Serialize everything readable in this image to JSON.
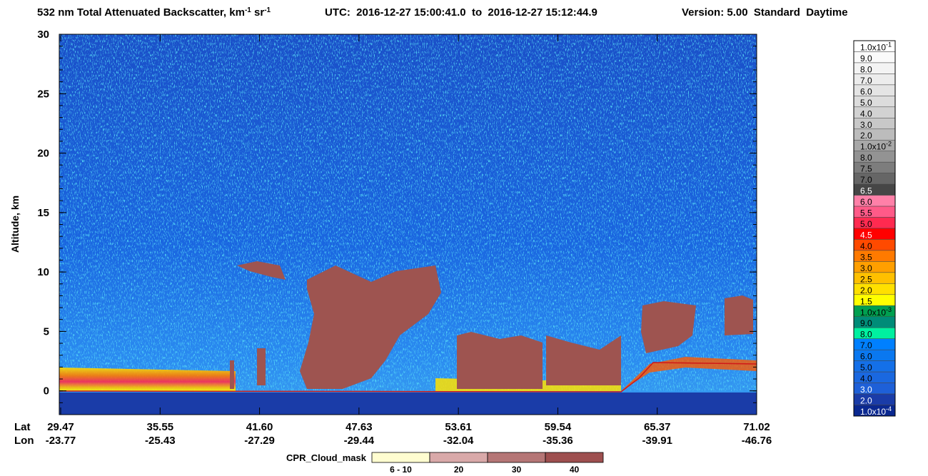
{
  "chart_data": {
    "type": "heatmap",
    "title_parts": [
      "532 nm Total Attenuated Backscatter, km",
      "-1",
      " sr",
      "-1"
    ],
    "utc": "UTC:  2016-12-27 15:00:41.0  to  2016-12-27 15:12:44.9",
    "version": "Version: 5.00  Standard  Daytime",
    "y_label": "Altitude, km",
    "ylim": [
      -2,
      30
    ],
    "yticks": [
      0,
      5,
      10,
      15,
      20,
      25,
      30
    ],
    "lat_label": "Lat",
    "lon_label": "Lon",
    "lat": [
      "29.47",
      "35.55",
      "41.60",
      "47.63",
      "53.61",
      "59.54",
      "65.37",
      "71.02"
    ],
    "lon": [
      "-23.77",
      "-25.43",
      "-27.29",
      "-29.44",
      "-32.04",
      "-35.36",
      "-39.91",
      "-46.76"
    ],
    "colorbar": {
      "labels": [
        [
          "1.0x10",
          "-1"
        ],
        "9.0",
        "8.0",
        "7.0",
        "6.0",
        "5.0",
        "4.0",
        "3.0",
        "2.0",
        [
          "1.0x10",
          "-2"
        ],
        "8.0",
        "7.5",
        "7.0",
        "6.5",
        "6.0",
        "5.5",
        "5.0",
        "4.5",
        "4.0",
        "3.5",
        "3.0",
        "2.5",
        "2.0",
        "1.5",
        [
          "1.0x10",
          "-3"
        ],
        "9.0",
        "8.0",
        "7.0",
        "6.0",
        "5.0",
        "4.0",
        "3.0",
        "2.0",
        [
          "1.0x10",
          "-4"
        ]
      ],
      "colors": [
        "#ffffff",
        "#fafafa",
        "#f3f3f3",
        "#ececec",
        "#e4e4e4",
        "#dcdcdc",
        "#d2d2d2",
        "#c8c8c8",
        "#bcbcbc",
        "#a8a8a8",
        "#939393",
        "#7d7d7d",
        "#666666",
        "#464646",
        "#ff80a8",
        "#ff5a88",
        "#ff2a50",
        "#ff0000",
        "#ff4a00",
        "#ff7a00",
        "#ff9f00",
        "#ffc000",
        "#ffe000",
        "#ffff00",
        "#00a050",
        "#008c78",
        "#00f0a0",
        "#0080ff",
        "#0a78f0",
        "#1470e8",
        "#1a68e0",
        "#1e60d8",
        "#1a3ca8",
        "#0a2890"
      ]
    },
    "cloud_mask": {
      "label": "CPR_Cloud_mask",
      "labels": [
        "6 - 10",
        "20",
        "30",
        "40"
      ],
      "colors": [
        "#fffdd0",
        "#d9a9a9",
        "#b57676",
        "#9e4f4f"
      ]
    }
  }
}
